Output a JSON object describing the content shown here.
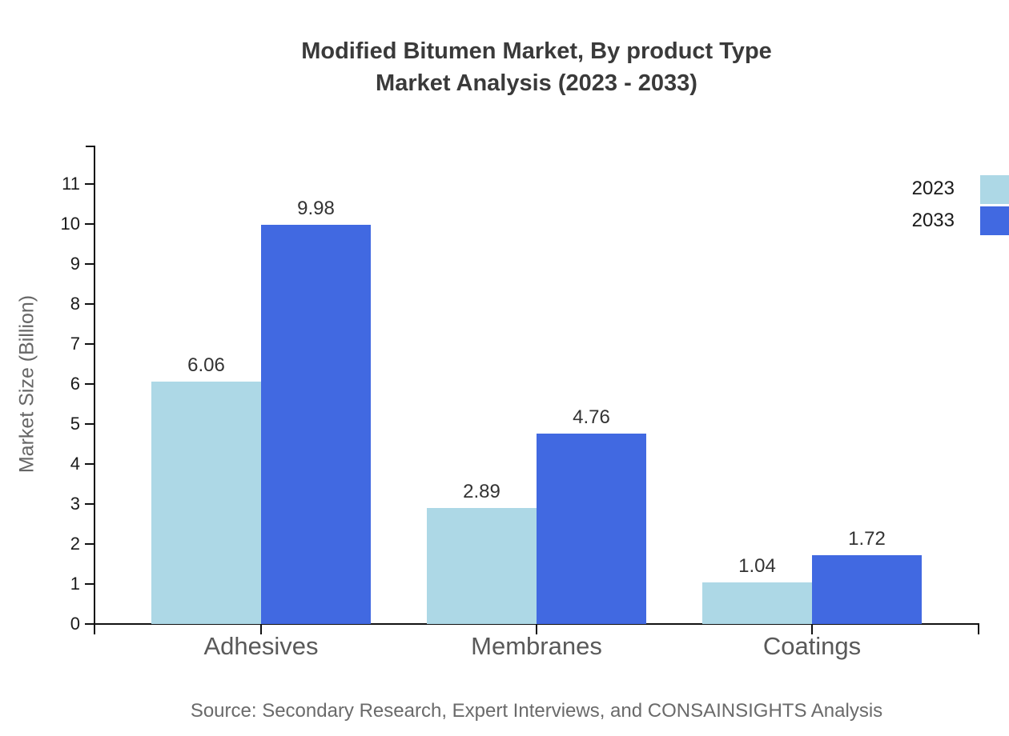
{
  "title": {
    "line1": "Modified Bitumen Market, By product Type",
    "line2": "Market Analysis (2023 - 2033)"
  },
  "source": "Source: Secondary Research, Expert Interviews, and CONSAINSIGHTS Analysis",
  "legend": {
    "items": [
      {
        "label": "2023",
        "color": "#ADD8E6"
      },
      {
        "label": "2033",
        "color": "#4169E1"
      }
    ]
  },
  "colors": {
    "series_2023": "#ADD8E6",
    "series_2033": "#4169E1",
    "axis": "#111111",
    "title_text": "#3a3a3a",
    "tick_text": "#1a1a1a",
    "category_text": "#595959",
    "value_text": "#333333",
    "source_text": "#6a6a6a"
  },
  "chart_data": {
    "type": "bar",
    "title": "Modified Bitumen Market, By product Type Market Analysis (2023 - 2033)",
    "categories": [
      "Adhesives",
      "Membranes",
      "Coatings"
    ],
    "series": [
      {
        "name": "2023",
        "color": "#ADD8E6",
        "values": [
          6.06,
          2.89,
          1.04
        ],
        "display": [
          "6.06",
          "2.89",
          "1.04"
        ]
      },
      {
        "name": "2033",
        "color": "#4169E1",
        "values": [
          9.98,
          4.76,
          1.72
        ],
        "display": [
          "9.98",
          "4.76",
          "1.72"
        ]
      }
    ],
    "xlabel": "",
    "ylabel": "Market Size (Billion)",
    "ylim": [
      0,
      12
    ],
    "yticks": [
      0,
      1,
      2,
      3,
      4,
      5,
      6,
      7,
      8,
      9,
      10,
      11
    ],
    "grid": false,
    "legend_position": "top-right",
    "value_labels": true
  }
}
